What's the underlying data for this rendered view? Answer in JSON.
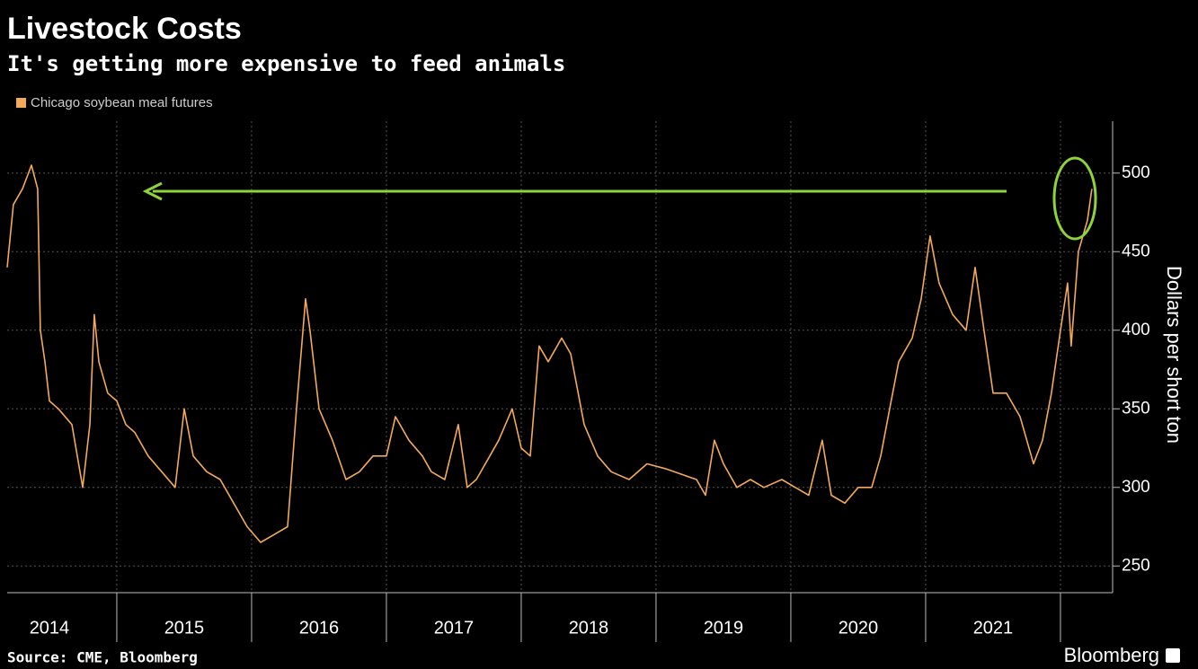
{
  "chart_data": {
    "type": "line",
    "title": "Livestock Costs",
    "subtitle": "It's getting more expensive to feed animals",
    "y_label": "Dollars per short ton",
    "source": "Source: CME,  Bloomberg",
    "brand": "Bloomberg",
    "x": [
      2014.187,
      2014.233,
      2014.3,
      2014.367,
      2014.413,
      2014.433,
      2014.467,
      2014.5,
      2014.567,
      2014.667,
      2014.747,
      2014.8,
      2014.833,
      2014.867,
      2014.933,
      2015.0,
      2015.067,
      2015.133,
      2015.233,
      2015.333,
      2015.433,
      2015.5,
      2015.567,
      2015.667,
      2015.767,
      2015.867,
      2015.967,
      2016.067,
      2016.167,
      2016.267,
      2016.333,
      2016.4,
      2016.433,
      2016.5,
      2016.6,
      2016.7,
      2016.8,
      2016.9,
      2017.0,
      2017.067,
      2017.167,
      2017.267,
      2017.333,
      2017.433,
      2017.533,
      2017.6,
      2017.667,
      2017.767,
      2017.833,
      2017.933,
      2018.0,
      2018.067,
      2018.133,
      2018.2,
      2018.3,
      2018.367,
      2018.467,
      2018.567,
      2018.667,
      2018.8,
      2018.933,
      2019.067,
      2019.2,
      2019.3,
      2019.367,
      2019.433,
      2019.5,
      2019.6,
      2019.7,
      2019.8,
      2019.933,
      2020.033,
      2020.133,
      2020.233,
      2020.3,
      2020.4,
      2020.5,
      2020.6,
      2020.667,
      2020.733,
      2020.8,
      2020.9,
      2020.967,
      2021.033,
      2021.1,
      2021.2,
      2021.3,
      2021.367,
      2021.433,
      2021.5,
      2021.6,
      2021.7,
      2021.8,
      2021.867,
      2021.933,
      2022.0,
      2022.053,
      2022.08,
      2022.133,
      2022.2,
      2022.233
    ],
    "series": [
      {
        "name": "Chicago soybean meal futures",
        "color": "#f4a95a",
        "values": [
          440,
          480,
          490,
          505,
          490,
          400,
          380,
          355,
          350,
          340,
          300,
          340,
          410,
          380,
          360,
          355,
          340,
          335,
          320,
          310,
          300,
          350,
          320,
          310,
          305,
          290,
          275,
          265,
          270,
          275,
          350,
          420,
          400,
          350,
          330,
          305,
          310,
          320,
          320,
          345,
          330,
          320,
          310,
          305,
          340,
          300,
          305,
          320,
          330,
          350,
          325,
          320,
          390,
          380,
          395,
          385,
          340,
          320,
          310,
          305,
          315,
          312,
          308,
          305,
          295,
          330,
          315,
          300,
          305,
          300,
          305,
          300,
          295,
          330,
          295,
          290,
          300,
          300,
          320,
          350,
          380,
          395,
          420,
          460,
          430,
          410,
          400,
          440,
          400,
          360,
          360,
          345,
          315,
          330,
          360,
          400,
          430,
          390,
          450,
          470,
          490
        ]
      }
    ],
    "xlim": [
      2014.187,
      2022.387
    ],
    "xticks": [
      {
        "value": 2014.5,
        "label": "2014"
      },
      {
        "value": 2015.5,
        "label": "2015"
      },
      {
        "value": 2016.5,
        "label": "2016"
      },
      {
        "value": 2017.5,
        "label": "2017"
      },
      {
        "value": 2018.5,
        "label": "2018"
      },
      {
        "value": 2019.5,
        "label": "2019"
      },
      {
        "value": 2020.5,
        "label": "2020"
      },
      {
        "value": 2021.5,
        "label": "2021"
      }
    ],
    "ylim": [
      233,
      533
    ],
    "yticks": [
      250,
      300,
      350,
      400,
      450,
      500
    ],
    "grid": true
  }
}
